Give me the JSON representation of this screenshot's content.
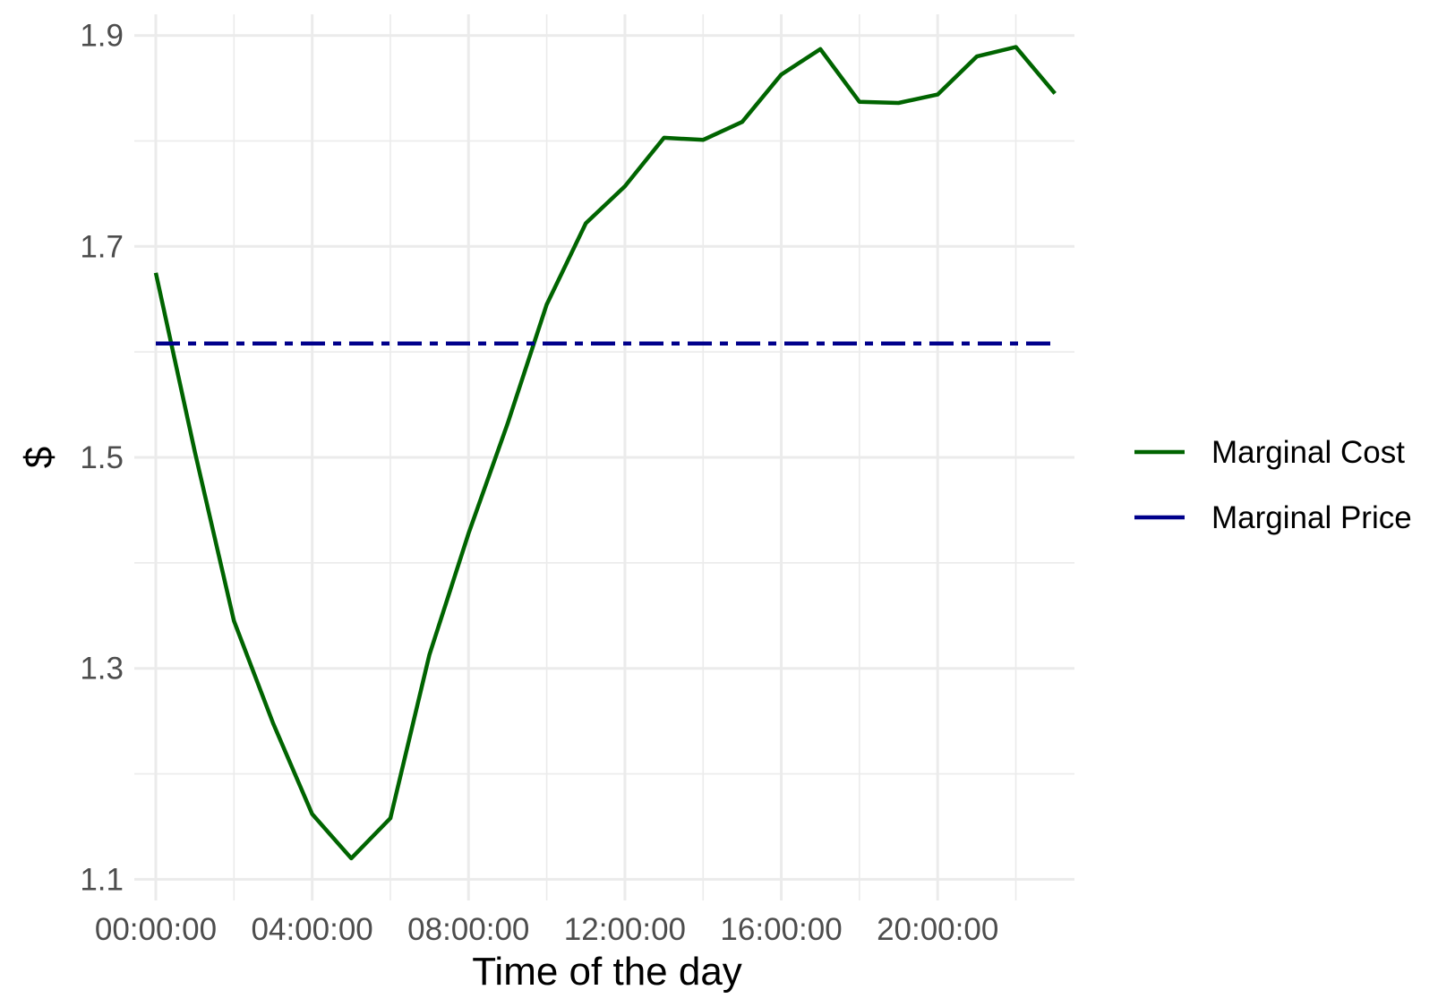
{
  "chart_data": {
    "type": "line",
    "x_type": "time",
    "xlabel": "Time of the day",
    "ylabel": "$",
    "ylim": [
      1.08,
      1.92
    ],
    "y_ticks": [
      1.1,
      1.3,
      1.5,
      1.7,
      1.9
    ],
    "y_minor_ticks": [
      1.2,
      1.4,
      1.6,
      1.8
    ],
    "x_ticks": [
      "00:00:00",
      "04:00:00",
      "08:00:00",
      "12:00:00",
      "16:00:00",
      "20:00:00"
    ],
    "x_minor_ticks": [
      "02:00:00",
      "06:00:00",
      "10:00:00",
      "14:00:00",
      "18:00:00",
      "22:00:00"
    ],
    "xlim": [
      "-00:33:00",
      "23:30:00"
    ],
    "grid": true,
    "legend_position": "right",
    "x": [
      "00:00:00",
      "01:00:00",
      "02:00:00",
      "03:00:00",
      "04:00:00",
      "05:00:00",
      "06:00:00",
      "07:00:00",
      "08:00:00",
      "09:00:00",
      "10:00:00",
      "11:00:00",
      "12:00:00",
      "13:00:00",
      "14:00:00",
      "15:00:00",
      "16:00:00",
      "17:00:00",
      "18:00:00",
      "19:00:00",
      "20:00:00",
      "21:00:00",
      "22:00:00",
      "23:00:00"
    ],
    "series": [
      {
        "name": "Marginal Cost",
        "color": "#006400",
        "style": "solid",
        "values": [
          1.675,
          1.505,
          1.345,
          1.248,
          1.162,
          1.12,
          1.158,
          1.313,
          1.428,
          1.532,
          1.645,
          1.722,
          1.757,
          1.803,
          1.801,
          1.818,
          1.863,
          1.887,
          1.837,
          1.836,
          1.844,
          1.88,
          1.889,
          1.845
        ]
      },
      {
        "name": "Marginal Price",
        "color": "#00008B",
        "style": "dashdot",
        "values": [
          1.608,
          1.608,
          1.608,
          1.608,
          1.608,
          1.608,
          1.608,
          1.608,
          1.608,
          1.608,
          1.608,
          1.608,
          1.608,
          1.608,
          1.608,
          1.608,
          1.608,
          1.608,
          1.608,
          1.608,
          1.608,
          1.608,
          1.608,
          1.608
        ]
      }
    ]
  }
}
